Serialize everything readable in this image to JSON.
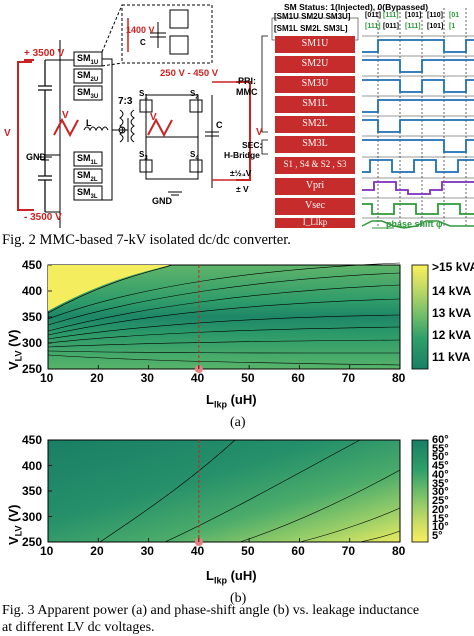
{
  "figure2": {
    "caption": "Fig. 2 MMC-based 7-kV isolated dc/dc converter.",
    "circuit": {
      "v_top": "+ 3500 V",
      "v_bottom": "- 3500 V",
      "v_inset": "1400 V",
      "v_range": "250 V - 450 V",
      "ratio": "7:3",
      "gnd_mv": "GND",
      "gnd_lv": "GND",
      "cap_label": "C",
      "sub_modules": [
        "SM",
        "SM",
        "SM",
        "SM",
        "SM",
        "SM"
      ],
      "sub_module_subs": [
        "1U",
        "2U",
        "3U",
        "1L",
        "2L",
        "3L"
      ],
      "switches": [
        "S",
        "S",
        "S",
        "S"
      ],
      "switch_subs": [
        "1",
        "2",
        "3",
        "4"
      ],
      "v_mvdc": "V",
      "v_pri": "V",
      "v_sec": "V",
      "v_lvdc": "V",
      "l_lkp": "L",
      "c_bat": "C"
    },
    "timing": {
      "status_title": "SM Status: 1(Injected), 0(Bypassed)",
      "header_row1": "[SM1U SM2U SM3U]",
      "header_row2": "[SM1L SM2L SM3L]",
      "codes_row1": [
        "[011]",
        "[111]",
        "[101]",
        "[110]",
        "[01"
      ],
      "codes_row2": [
        "[111]",
        "[011]",
        "[111]",
        "[101]",
        "[1"
      ],
      "pri_label": "PRI:",
      "mmc_label": "MMC",
      "sec_label": "SEC:",
      "hbridge_label": "H-Bridge",
      "v_mvdc_label": "±½₄V",
      "v_lvdc_label": "± V",
      "rows": [
        "SM1U",
        "SM2U",
        "SM3U",
        "SM1L",
        "SM2L",
        "SM3L",
        "S1 , S4 & S2 , S3",
        "Vpri",
        "Vsec",
        "I_Llkp"
      ],
      "phase_shift": "phase shift φ"
    }
  },
  "figure3": {
    "caption_line1": "Fig. 3 Apparent power (a) and phase-shift angle (b) vs. leakage inductance",
    "caption_line2": "at different LV dc voltages.",
    "sublabel_a": "(a)",
    "sublabel_b": "(b)"
  },
  "chart_data": [
    {
      "type": "heatmap",
      "panel": "(a)",
      "xlabel": "L_lkp (uH)",
      "ylabel": "V_LV (V)",
      "xlim": [
        10,
        80
      ],
      "ylim": [
        250,
        450
      ],
      "xticks": [
        10,
        20,
        30,
        40,
        50,
        60,
        70,
        80
      ],
      "yticks": [
        250,
        300,
        350,
        400,
        450
      ],
      "colorbar_ticks": [
        ">15 kVA",
        "14 kVA",
        "13 kVA",
        "12 kVA",
        "11 kVA"
      ],
      "colorbar_range_kVA": [
        10.4,
        15
      ],
      "contour_levels": [
        11,
        11.5,
        12,
        12.5,
        13,
        13.5,
        14,
        14.5
      ],
      "marker": {
        "L_lkp": 40,
        "V_LV": 250
      },
      "marker_line": 40,
      "yellow_saturated_region": "top-left (L_lkp < 30 uH, V_LV > 400 V)",
      "minimum_region": "V_LV ≈ 350 V, L_lkp 30-80 uH"
    },
    {
      "type": "heatmap",
      "panel": "(b)",
      "xlabel": "L_lkp (uH)",
      "ylabel": "V_LV (V)",
      "xlim": [
        10,
        80
      ],
      "ylim": [
        250,
        450
      ],
      "xticks": [
        10,
        20,
        30,
        40,
        50,
        60,
        70,
        80
      ],
      "yticks": [
        250,
        300,
        350,
        400,
        450
      ],
      "colorbar_ticks": [
        "60°",
        "55°",
        "50°",
        "45°",
        "40°",
        "35°",
        "30°",
        "25°",
        "20°",
        "15°",
        "10°",
        "5°"
      ],
      "colorbar_range_deg": [
        5,
        60
      ],
      "contour_levels_deg": [
        10,
        20,
        30,
        40,
        50
      ],
      "marker": {
        "L_lkp": 40,
        "V_LV": 250
      },
      "marker_line": 40
    }
  ]
}
